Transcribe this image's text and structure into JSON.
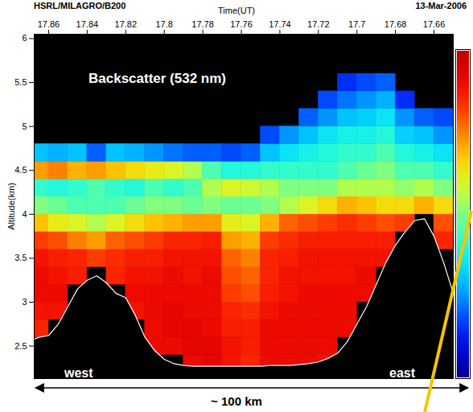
{
  "chart_data": {
    "type": "heatmap",
    "header_left": "HSRL/MILAGRO/B200",
    "header_right": "13-Mar-2006",
    "title": "Backscatter (532 nm)",
    "xlabel": "Time(UT)",
    "ylabel": "Altitude(km)",
    "xlim": [
      17.8675,
      17.65
    ],
    "xticks": [
      17.86,
      17.84,
      17.82,
      17.8,
      17.78,
      17.76,
      17.74,
      17.72,
      17.7,
      17.68,
      17.66
    ],
    "ylim": [
      2.13,
      6.05
    ],
    "yticks": [
      2.5,
      3,
      3.5,
      4,
      4.5,
      5,
      5.5,
      6
    ],
    "x": [
      17.865,
      17.855,
      17.845,
      17.835,
      17.825,
      17.815,
      17.805,
      17.795,
      17.785,
      17.775,
      17.765,
      17.755,
      17.745,
      17.735,
      17.725,
      17.715,
      17.705,
      17.695,
      17.685,
      17.675,
      17.665,
      17.655
    ],
    "y": [
      2.3,
      2.5,
      2.7,
      2.9,
      3.1,
      3.3,
      3.5,
      3.7,
      3.9,
      4.1,
      4.3,
      4.5,
      4.7,
      4.9,
      5.1,
      5.3,
      5.5,
      5.7,
      5.9
    ],
    "z": [
      [
        null,
        null,
        0.85,
        0.88,
        0.9,
        0.9,
        0.88,
        0.82,
        0.68,
        0.5,
        0.42,
        0.72,
        0.3,
        null,
        null,
        null,
        null,
        null,
        null
      ],
      [
        null,
        null,
        null,
        0.88,
        0.9,
        0.88,
        0.86,
        0.8,
        0.62,
        0.48,
        0.4,
        0.75,
        0.28,
        null,
        null,
        null,
        null,
        null,
        null
      ],
      [
        null,
        null,
        null,
        null,
        null,
        0.86,
        0.85,
        0.75,
        0.6,
        0.45,
        0.42,
        0.7,
        0.3,
        null,
        null,
        null,
        null,
        null,
        null
      ],
      [
        null,
        null,
        null,
        null,
        null,
        null,
        0.82,
        0.72,
        0.55,
        0.45,
        0.45,
        0.72,
        0.2,
        null,
        null,
        null,
        null,
        null,
        null
      ],
      [
        null,
        null,
        null,
        null,
        null,
        0.85,
        0.84,
        0.78,
        0.6,
        0.45,
        0.42,
        0.68,
        0.3,
        null,
        null,
        null,
        null,
        null,
        null
      ],
      [
        null,
        null,
        null,
        0.88,
        0.9,
        0.88,
        0.86,
        0.8,
        0.65,
        0.48,
        0.4,
        0.65,
        0.28,
        null,
        null,
        null,
        null,
        null,
        null
      ],
      [
        null,
        0.9,
        0.9,
        0.9,
        0.9,
        0.88,
        0.86,
        0.82,
        0.68,
        0.5,
        0.45,
        0.62,
        0.25,
        null,
        null,
        null,
        null,
        null,
        null
      ],
      [
        null,
        0.9,
        0.92,
        0.92,
        0.9,
        0.9,
        0.88,
        0.85,
        0.7,
        0.5,
        0.42,
        0.6,
        0.22,
        null,
        null,
        null,
        null,
        null,
        null
      ],
      [
        0.9,
        0.92,
        0.92,
        0.9,
        0.9,
        0.88,
        0.88,
        0.85,
        0.72,
        0.48,
        0.45,
        0.55,
        0.2,
        null,
        null,
        null,
        null,
        null,
        null
      ],
      [
        0.92,
        0.92,
        0.9,
        0.9,
        0.9,
        0.9,
        0.88,
        0.86,
        0.72,
        0.5,
        0.55,
        0.45,
        0.2,
        null,
        null,
        null,
        null,
        null,
        null
      ],
      [
        0.88,
        0.88,
        0.86,
        0.85,
        0.82,
        0.8,
        0.78,
        0.72,
        0.62,
        0.48,
        0.6,
        0.4,
        0.18,
        null,
        null,
        null,
        null,
        null,
        null
      ],
      [
        0.85,
        0.86,
        0.86,
        0.84,
        0.8,
        0.78,
        0.75,
        0.7,
        0.6,
        0.48,
        0.58,
        0.4,
        0.2,
        null,
        null,
        null,
        null,
        null,
        null
      ],
      [
        0.9,
        0.9,
        0.9,
        0.88,
        0.86,
        0.85,
        0.85,
        0.82,
        0.7,
        0.5,
        0.55,
        0.42,
        0.3,
        0.18,
        null,
        null,
        null,
        null,
        null
      ],
      [
        0.9,
        0.9,
        0.9,
        0.9,
        0.88,
        0.88,
        0.86,
        0.84,
        0.78,
        0.55,
        0.5,
        0.42,
        0.35,
        0.25,
        null,
        null,
        null,
        null,
        null
      ],
      [
        0.9,
        0.9,
        0.9,
        0.9,
        0.9,
        0.88,
        0.88,
        0.86,
        0.8,
        0.6,
        0.5,
        0.42,
        0.38,
        0.3,
        0.2,
        null,
        null,
        null,
        null
      ],
      [
        0.88,
        0.9,
        0.9,
        0.9,
        0.9,
        0.88,
        0.88,
        0.86,
        0.82,
        0.65,
        0.5,
        0.42,
        0.4,
        0.35,
        0.25,
        0.18,
        null,
        null,
        null
      ],
      [
        null,
        null,
        0.9,
        0.9,
        0.9,
        0.88,
        0.88,
        0.86,
        0.84,
        0.7,
        0.55,
        0.45,
        0.42,
        0.38,
        0.3,
        0.22,
        0.15,
        null,
        null
      ],
      [
        null,
        null,
        null,
        null,
        0.9,
        0.9,
        0.88,
        0.86,
        0.82,
        0.68,
        0.55,
        0.48,
        0.42,
        0.38,
        0.32,
        0.25,
        0.18,
        null,
        null
      ],
      [
        null,
        null,
        null,
        null,
        null,
        null,
        0.88,
        0.86,
        0.8,
        0.65,
        0.55,
        0.5,
        0.45,
        0.4,
        0.35,
        0.28,
        0.2,
        null,
        null
      ],
      [
        null,
        null,
        null,
        null,
        null,
        null,
        null,
        null,
        0.82,
        0.65,
        0.52,
        0.45,
        0.4,
        0.32,
        0.25,
        0.15,
        null,
        null,
        null
      ],
      [
        null,
        null,
        null,
        null,
        null,
        null,
        null,
        null,
        null,
        0.7,
        0.55,
        0.45,
        0.38,
        0.3,
        0.2,
        null,
        null,
        null,
        null
      ],
      [
        null,
        null,
        null,
        null,
        null,
        null,
        null,
        0.85,
        0.8,
        0.65,
        0.5,
        0.42,
        0.35,
        0.25,
        0.18,
        null,
        null,
        null,
        null
      ]
    ],
    "color_range": [
      0,
      1
    ],
    "terrain": {
      "x": [
        17.8675,
        17.865,
        17.86,
        17.855,
        17.85,
        17.845,
        17.84,
        17.835,
        17.83,
        17.825,
        17.82,
        17.815,
        17.81,
        17.805,
        17.8,
        17.795,
        17.79,
        17.785,
        17.78,
        17.775,
        17.77,
        17.765,
        17.76,
        17.755,
        17.75,
        17.745,
        17.74,
        17.735,
        17.73,
        17.725,
        17.72,
        17.715,
        17.71,
        17.705,
        17.7,
        17.695,
        17.69,
        17.685,
        17.68,
        17.675,
        17.67,
        17.665,
        17.66,
        17.655,
        17.65
      ],
      "altitude": [
        2.58,
        2.6,
        2.62,
        2.75,
        2.95,
        3.15,
        3.25,
        3.3,
        3.22,
        3.1,
        3.05,
        2.85,
        2.6,
        2.45,
        2.35,
        2.3,
        2.28,
        2.27,
        2.27,
        2.27,
        2.27,
        2.27,
        2.27,
        2.27,
        2.27,
        2.28,
        2.28,
        2.28,
        2.29,
        2.3,
        2.32,
        2.36,
        2.42,
        2.55,
        2.75,
        2.95,
        3.2,
        3.45,
        3.65,
        3.8,
        3.93,
        3.95,
        3.75,
        3.45,
        3.1
      ]
    },
    "annotations": [
      "west",
      "east"
    ],
    "scale_bar": "~ 100 km"
  }
}
